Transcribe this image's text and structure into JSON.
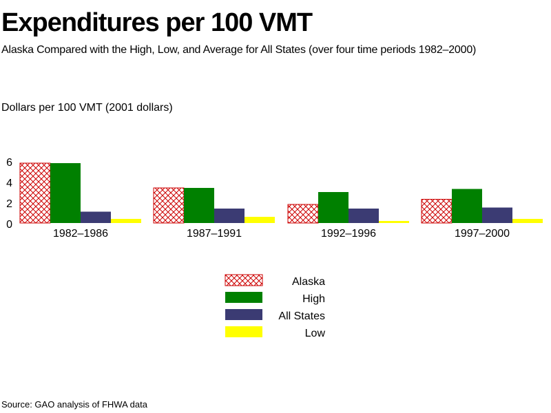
{
  "title": "Expenditures per 100 VMT",
  "subtitle": "Alaska Compared with the High, Low, and Average for All States (over four time periods 1982–2000)",
  "ylabel": "Dollars per 100 VMT   (2001 dollars)",
  "source": "Source: GAO analysis of FHWA data",
  "chart_data": {
    "type": "bar",
    "categories": [
      "1982–1986",
      "1987–1991",
      "1992–1996",
      "1997–2000"
    ],
    "series": [
      {
        "name": "Alaska",
        "values": [
          5.8,
          3.4,
          1.8,
          2.3
        ],
        "color": "#cc0000",
        "pattern": "crosshatch"
      },
      {
        "name": "High",
        "values": [
          5.8,
          3.4,
          3.0,
          3.3
        ],
        "color": "#008000"
      },
      {
        "name": "All States",
        "values": [
          1.1,
          1.4,
          1.4,
          1.5
        ],
        "color": "#3b3b73"
      },
      {
        "name": "Low",
        "values": [
          0.4,
          0.6,
          0.2,
          0.4
        ],
        "color": "#ffff00"
      }
    ],
    "ylim": [
      0,
      6
    ],
    "yticks": [
      0,
      2,
      4,
      6
    ],
    "grid": false,
    "legend": "bottom-center"
  }
}
